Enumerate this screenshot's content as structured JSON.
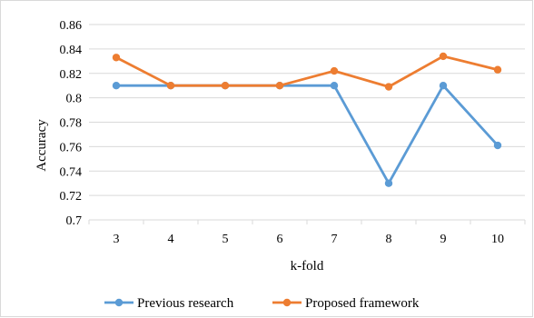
{
  "chart_data": {
    "type": "line",
    "title": "",
    "xlabel": "k-fold",
    "ylabel": "Accuracy",
    "x": [
      3,
      4,
      5,
      6,
      7,
      8,
      9,
      10
    ],
    "categories": [
      "3",
      "4",
      "5",
      "6",
      "7",
      "8",
      "9",
      "10"
    ],
    "ylim": [
      0.7,
      0.86
    ],
    "yticks": [
      0.7,
      0.72,
      0.74,
      0.76,
      0.78,
      0.8,
      0.82,
      0.84,
      0.86
    ],
    "yticklabels": [
      "0.7",
      "0.72",
      "0.74",
      "0.76",
      "0.78",
      "0.8",
      "0.82",
      "0.84",
      "0.86"
    ],
    "grid": "horizontal",
    "legend_position": "bottom",
    "series": [
      {
        "name": "Previous research",
        "color": "#5b9bd5",
        "values": [
          0.81,
          0.81,
          0.81,
          0.81,
          0.81,
          0.73,
          0.81,
          0.761
        ]
      },
      {
        "name": "Proposed framework",
        "color": "#ed7d31",
        "values": [
          0.833,
          0.81,
          0.81,
          0.81,
          0.822,
          0.809,
          0.834,
          0.823
        ]
      }
    ]
  }
}
